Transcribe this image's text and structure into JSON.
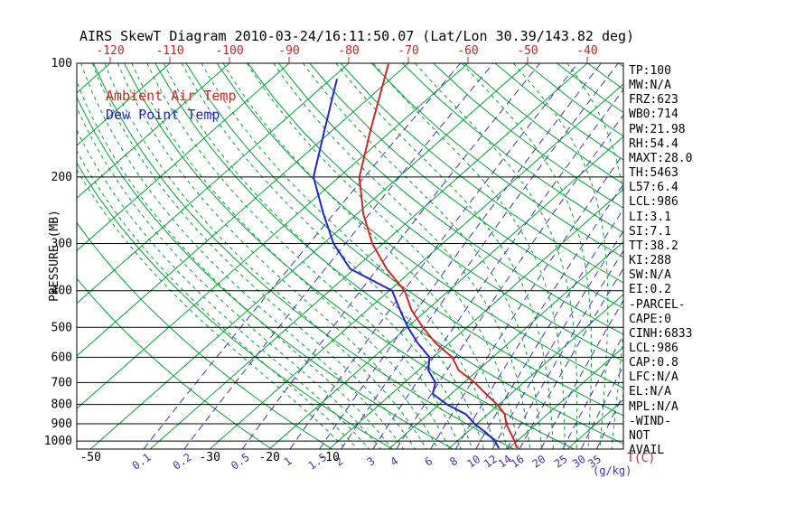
{
  "title": "AIRS SkewT Diagram 2010-03-24/16:11:50.07 (Lat/Lon 30.39/143.82 deg)",
  "legend": {
    "temperature": "Ambient Air Temp",
    "dew_point": "Dew Point Temp"
  },
  "axes": {
    "pressure_label": "PRESSURE (MB)",
    "pressure_ticks": [
      100,
      200,
      300,
      400,
      500,
      600,
      700,
      800,
      900,
      1000
    ],
    "top_temp_ticks": [
      -120,
      -110,
      -100,
      -90,
      -80,
      -70,
      -60,
      -50,
      -40
    ],
    "bottom_temp_ticks": [
      -50,
      -30,
      -20,
      -10
    ],
    "mixing_ratio_ticks": [
      0.1,
      0.2,
      0.5,
      1,
      1.5,
      2,
      3,
      4,
      6,
      8,
      10,
      12,
      14,
      16,
      20,
      25,
      30,
      35
    ],
    "temp_unit_label": "T(C)",
    "mixing_unit_label": "(g/kg)"
  },
  "stats": [
    "TP:100",
    "MW:N/A",
    "FRZ:623",
    "WB0:714",
    "PW:21.98",
    "RH:54.4",
    "MAXT:28.0",
    "TH:5463",
    "L57:6.4",
    "LCL:986",
    "LI:3.1",
    "SI:7.1",
    "TT:38.2",
    "KI:288",
    "SW:N/A",
    "EI:0.2",
    "-PARCEL-",
    "CAPE:0",
    "CINH:6833",
    "LCL:986",
    "CAP:0.8",
    "LFC:N/A",
    "EL:N/A",
    "MPL:N/A",
    "-WIND-",
    "NOT",
    "AVAIL"
  ],
  "colors": {
    "isotherm_green": "#00a332",
    "mixing_ratio_purple": "#4335ad",
    "axis_red": "#cc2222",
    "axis_black": "#000000",
    "background": "#ffffff"
  },
  "chart_data": {
    "type": "line",
    "title": "AIRS SkewT Diagram 2010-03-24/16:11:50.07 (Lat/Lon 30.39/143.82 deg)",
    "xlabel": "T(C)",
    "ylabel": "PRESSURE (MB)",
    "y_axis": {
      "scale": "log",
      "range_mb": [
        100,
        1050
      ],
      "pressure_ticks_mb": [
        100,
        200,
        300,
        400,
        500,
        600,
        700,
        800,
        900,
        1000
      ]
    },
    "x_axis": {
      "surface_temp_ticks_c": [
        -50,
        -30,
        -20,
        -10
      ],
      "top_temp_ticks_c": [
        -120,
        -110,
        -100,
        -90,
        -80,
        -70,
        -60,
        -50,
        -40
      ]
    },
    "series": [
      {
        "name": "Ambient Air Temp",
        "color": "#cf2626",
        "points_p_mb_t_c": [
          [
            100,
            -73.3
          ],
          [
            150,
            -63.7
          ],
          [
            200,
            -56.6
          ],
          [
            250,
            -49.0
          ],
          [
            300,
            -41.8
          ],
          [
            350,
            -34.6
          ],
          [
            400,
            -27.4
          ],
          [
            450,
            -22.6
          ],
          [
            500,
            -17.4
          ],
          [
            550,
            -12.3
          ],
          [
            600,
            -6.8
          ],
          [
            650,
            -3.2
          ],
          [
            700,
            1.8
          ],
          [
            750,
            5.8
          ],
          [
            800,
            9.7
          ],
          [
            850,
            12.9
          ],
          [
            900,
            14.9
          ],
          [
            950,
            17.3
          ],
          [
            1000,
            19.6
          ],
          [
            1044,
            21.3
          ]
        ]
      },
      {
        "name": "Dew Point Temp",
        "color": "#2424cc",
        "points_p_mb_t_c": [
          [
            110,
            -79.0
          ],
          [
            150,
            -71.4
          ],
          [
            200,
            -64.3
          ],
          [
            250,
            -55.7
          ],
          [
            300,
            -48.3
          ],
          [
            350,
            -40.7
          ],
          [
            400,
            -29.5
          ],
          [
            450,
            -24.5
          ],
          [
            500,
            -19.9
          ],
          [
            550,
            -15.3
          ],
          [
            600,
            -10.6
          ],
          [
            650,
            -8.3
          ],
          [
            700,
            -4.8
          ],
          [
            750,
            -3.1
          ],
          [
            800,
            1.3
          ],
          [
            850,
            6.4
          ],
          [
            900,
            9.6
          ],
          [
            950,
            13.2
          ],
          [
            1000,
            16.3
          ],
          [
            1044,
            18.3
          ]
        ]
      }
    ],
    "isotherms_c": {
      "min": -130,
      "max": 40,
      "step": 10
    },
    "dry_adiabats_k": {
      "min": 250,
      "max": 460,
      "step": 10
    },
    "moist_adiabats_c": {
      "min": -10,
      "max": 36,
      "step": 2
    },
    "mixing_ratio_lines_g_kg": [
      0.1,
      0.2,
      0.5,
      1,
      1.5,
      2,
      3,
      4,
      6,
      8,
      10,
      12,
      14,
      16,
      20,
      25,
      30,
      35
    ]
  }
}
